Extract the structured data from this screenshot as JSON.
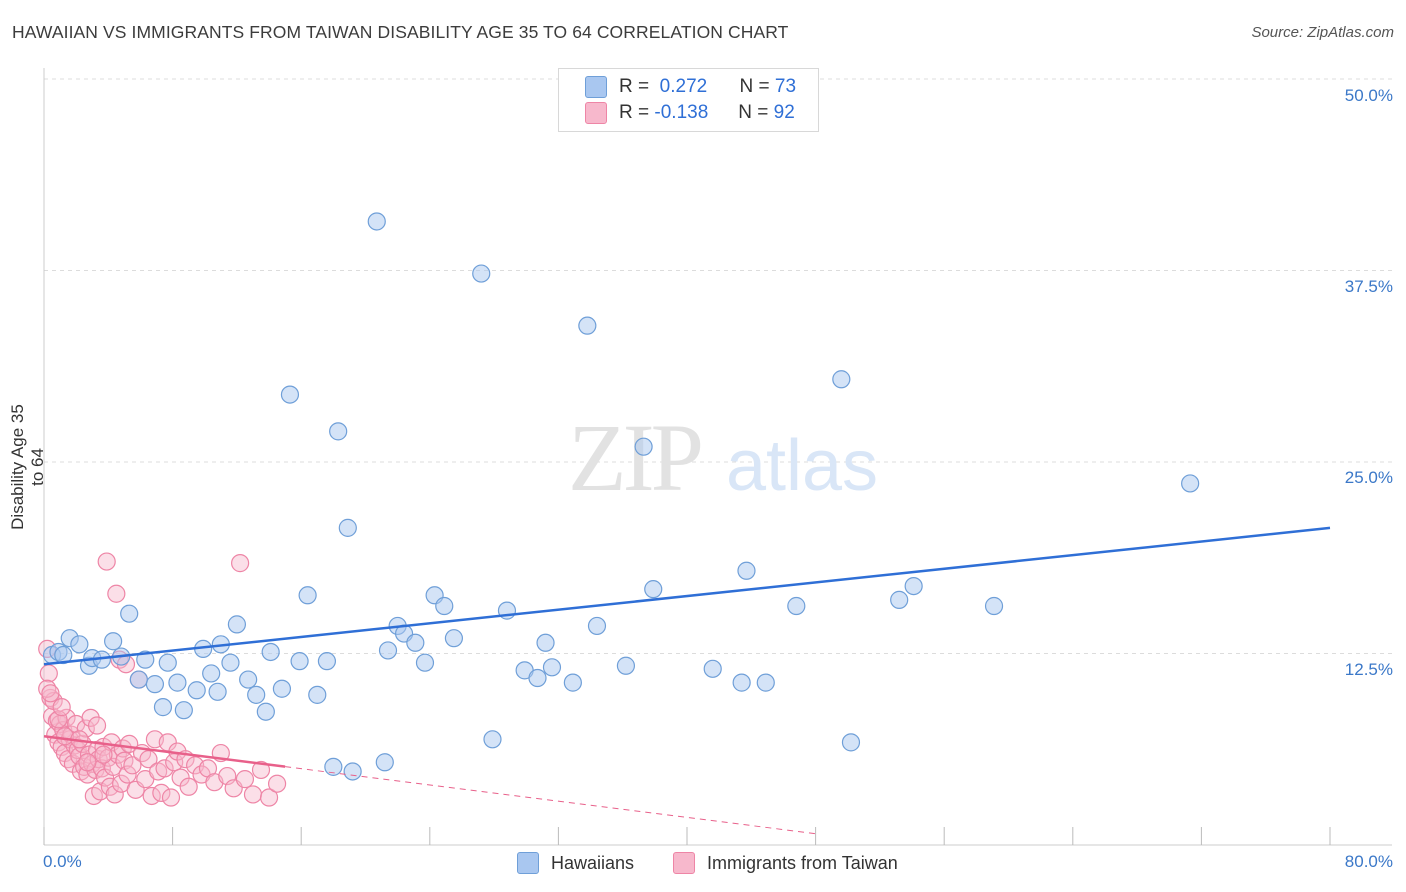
{
  "title": "HAWAIIAN VS IMMIGRANTS FROM TAIWAN DISABILITY AGE 35 TO 64 CORRELATION CHART",
  "source": "Source: ZipAtlas.com",
  "watermark": {
    "zip": "ZIP",
    "atlas": "atlas"
  },
  "legend": {
    "rows": [
      {
        "r_label": "R =",
        "r_value": "0.272",
        "n_label": "N =",
        "n_value": "73",
        "color": "#a9c7f0"
      },
      {
        "r_label": "R =",
        "r_value": "-0.138",
        "n_label": "N =",
        "n_value": "92",
        "color": "#f7b8cc"
      }
    ]
  },
  "bottom_legend": {
    "series1": "Hawaiians",
    "series2": "Immigrants from Taiwan"
  },
  "colors": {
    "blue_fill": "#a9c7f0",
    "blue_stroke": "#6f9fd8",
    "blue_line": "#2f6fd6",
    "pink_fill": "#f7b8cc",
    "pink_stroke": "#ee85a6",
    "pink_line": "#e8608a",
    "grid": "#dcdcdc",
    "axis_label": "#3b78c8"
  },
  "chart_data": {
    "type": "scatter",
    "title": "HAWAIIAN VS IMMIGRANTS FROM TAIWAN DISABILITY AGE 35 TO 64 CORRELATION CHART",
    "xlabel": "",
    "ylabel": "Disability Age 35 to 64",
    "xlim": [
      0,
      80
    ],
    "ylim": [
      0,
      50
    ],
    "x_tick_labels": [
      "0.0%",
      "80.0%"
    ],
    "y_tick_labels": [
      "12.5%",
      "25.0%",
      "37.5%",
      "50.0%"
    ],
    "y_ticks": [
      12.5,
      25.0,
      37.5,
      50.0
    ],
    "series": [
      {
        "name": "Hawaiians",
        "r": 0.272,
        "n": 73,
        "trend": {
          "x": [
            0,
            80
          ],
          "y": [
            11.8,
            20.7
          ],
          "solid_to": 80
        },
        "points": [
          [
            0.5,
            12.4
          ],
          [
            0.9,
            12.6
          ],
          [
            1.2,
            12.4
          ],
          [
            1.6,
            13.5
          ],
          [
            2.2,
            13.1
          ],
          [
            2.8,
            11.7
          ],
          [
            3.0,
            12.2
          ],
          [
            3.6,
            12.1
          ],
          [
            4.3,
            13.3
          ],
          [
            4.8,
            12.3
          ],
          [
            5.3,
            15.1
          ],
          [
            5.9,
            10.8
          ],
          [
            6.3,
            12.1
          ],
          [
            6.9,
            10.5
          ],
          [
            7.4,
            9.0
          ],
          [
            7.7,
            11.9
          ],
          [
            8.3,
            10.6
          ],
          [
            8.7,
            8.8
          ],
          [
            9.5,
            10.1
          ],
          [
            9.9,
            12.8
          ],
          [
            10.4,
            11.2
          ],
          [
            10.8,
            10.0
          ],
          [
            11.0,
            13.1
          ],
          [
            11.6,
            11.9
          ],
          [
            12.0,
            14.4
          ],
          [
            12.7,
            10.8
          ],
          [
            13.2,
            9.8
          ],
          [
            13.8,
            8.7
          ],
          [
            14.1,
            12.6
          ],
          [
            14.8,
            10.2
          ],
          [
            15.3,
            29.4
          ],
          [
            15.9,
            12.0
          ],
          [
            16.4,
            16.3
          ],
          [
            17.0,
            9.8
          ],
          [
            17.6,
            12.0
          ],
          [
            18.0,
            5.1
          ],
          [
            18.3,
            27.0
          ],
          [
            18.9,
            20.7
          ],
          [
            19.2,
            4.8
          ],
          [
            20.7,
            40.7
          ],
          [
            21.2,
            5.4
          ],
          [
            21.4,
            12.7
          ],
          [
            22.0,
            14.3
          ],
          [
            22.4,
            13.8
          ],
          [
            23.1,
            13.2
          ],
          [
            23.7,
            11.9
          ],
          [
            24.3,
            16.3
          ],
          [
            24.9,
            15.6
          ],
          [
            25.5,
            13.5
          ],
          [
            27.2,
            37.3
          ],
          [
            27.9,
            6.9
          ],
          [
            28.8,
            15.3
          ],
          [
            29.9,
            11.4
          ],
          [
            30.7,
            10.9
          ],
          [
            31.2,
            13.2
          ],
          [
            31.6,
            11.6
          ],
          [
            32.9,
            10.6
          ],
          [
            33.8,
            33.9
          ],
          [
            34.4,
            14.3
          ],
          [
            36.2,
            11.7
          ],
          [
            37.3,
            26.0
          ],
          [
            37.9,
            16.7
          ],
          [
            41.6,
            11.5
          ],
          [
            43.4,
            10.6
          ],
          [
            43.7,
            17.9
          ],
          [
            44.9,
            10.6
          ],
          [
            46.8,
            15.6
          ],
          [
            49.6,
            30.4
          ],
          [
            50.2,
            6.7
          ],
          [
            53.2,
            16.0
          ],
          [
            54.1,
            16.9
          ],
          [
            59.1,
            15.6
          ],
          [
            71.3,
            23.6
          ]
        ]
      },
      {
        "name": "Immigrants from Taiwan",
        "r": -0.138,
        "n": 92,
        "trend": {
          "x": [
            0,
            80
          ],
          "y": [
            7.1,
            -3.5
          ],
          "solid_to": 15
        },
        "points": [
          [
            0.2,
            12.8
          ],
          [
            0.3,
            11.2
          ],
          [
            0.4,
            9.6
          ],
          [
            0.5,
            8.4
          ],
          [
            0.6,
            9.4
          ],
          [
            0.7,
            7.2
          ],
          [
            0.8,
            8.1
          ],
          [
            0.9,
            6.7
          ],
          [
            1.0,
            7.9
          ],
          [
            1.1,
            6.4
          ],
          [
            1.2,
            7.5
          ],
          [
            1.3,
            6.0
          ],
          [
            1.4,
            8.3
          ],
          [
            1.5,
            5.6
          ],
          [
            1.6,
            6.9
          ],
          [
            1.7,
            7.2
          ],
          [
            1.8,
            5.3
          ],
          [
            1.9,
            6.5
          ],
          [
            2.0,
            7.9
          ],
          [
            2.1,
            6.2
          ],
          [
            2.2,
            5.8
          ],
          [
            2.3,
            4.8
          ],
          [
            2.4,
            6.6
          ],
          [
            2.5,
            5.1
          ],
          [
            2.6,
            7.6
          ],
          [
            2.7,
            4.6
          ],
          [
            2.8,
            5.9
          ],
          [
            2.9,
            8.3
          ],
          [
            3.0,
            5.3
          ],
          [
            3.1,
            3.2
          ],
          [
            3.2,
            4.9
          ],
          [
            3.3,
            6.2
          ],
          [
            3.4,
            5.6
          ],
          [
            3.5,
            3.5
          ],
          [
            3.6,
            5.0
          ],
          [
            3.7,
            6.4
          ],
          [
            3.8,
            4.4
          ],
          [
            3.9,
            18.5
          ],
          [
            4.0,
            5.7
          ],
          [
            4.1,
            3.8
          ],
          [
            4.2,
            6.7
          ],
          [
            4.3,
            5.1
          ],
          [
            4.4,
            3.3
          ],
          [
            4.5,
            16.4
          ],
          [
            4.6,
            5.9
          ],
          [
            4.7,
            12.1
          ],
          [
            4.8,
            4.0
          ],
          [
            4.9,
            6.3
          ],
          [
            5.0,
            5.5
          ],
          [
            5.1,
            11.8
          ],
          [
            5.2,
            4.6
          ],
          [
            5.3,
            6.6
          ],
          [
            5.5,
            5.2
          ],
          [
            5.7,
            3.6
          ],
          [
            5.9,
            10.8
          ],
          [
            6.1,
            6.0
          ],
          [
            6.3,
            4.3
          ],
          [
            6.5,
            5.6
          ],
          [
            6.7,
            3.2
          ],
          [
            6.9,
            6.9
          ],
          [
            7.1,
            4.8
          ],
          [
            7.3,
            3.4
          ],
          [
            7.5,
            5.0
          ],
          [
            7.7,
            6.7
          ],
          [
            7.9,
            3.1
          ],
          [
            8.1,
            5.4
          ],
          [
            8.3,
            6.1
          ],
          [
            8.5,
            4.4
          ],
          [
            8.8,
            5.6
          ],
          [
            9.0,
            3.8
          ],
          [
            9.4,
            5.2
          ],
          [
            9.8,
            4.6
          ],
          [
            10.2,
            5.0
          ],
          [
            10.6,
            4.1
          ],
          [
            11.0,
            6.0
          ],
          [
            11.4,
            4.5
          ],
          [
            11.8,
            3.7
          ],
          [
            12.2,
            18.4
          ],
          [
            12.5,
            4.3
          ],
          [
            13.0,
            3.3
          ],
          [
            13.5,
            4.9
          ],
          [
            14.0,
            3.1
          ],
          [
            14.5,
            4.0
          ],
          [
            0.2,
            10.2
          ],
          [
            0.4,
            9.9
          ],
          [
            0.9,
            8.2
          ],
          [
            1.1,
            9.0
          ],
          [
            1.3,
            7.1
          ],
          [
            2.2,
            6.9
          ],
          [
            2.7,
            5.4
          ],
          [
            3.3,
            7.8
          ],
          [
            3.7,
            5.9
          ]
        ]
      }
    ]
  }
}
